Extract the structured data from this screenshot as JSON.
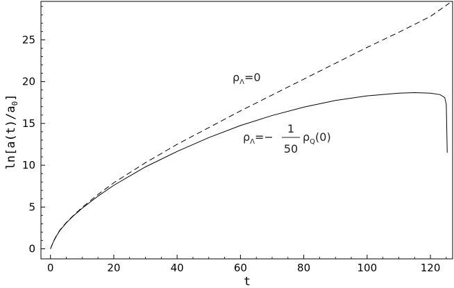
{
  "chart_data": {
    "type": "line",
    "title": "",
    "xlabel": "t",
    "ylabel": "ln[a(t)/a",
    "ylabel_sub": "0",
    "ylabel_end": "]",
    "xlim": [
      -3,
      127
    ],
    "ylim": [
      -1.2,
      29.6
    ],
    "x_ticks": [
      0,
      20,
      40,
      60,
      80,
      100,
      120
    ],
    "y_ticks": [
      0,
      5,
      10,
      15,
      20,
      25
    ],
    "grid": false,
    "legend": "none",
    "series": [
      {
        "style": "dashed",
        "color": "#000000",
        "x": [
          0,
          1,
          2,
          3,
          5,
          7,
          10,
          15,
          20,
          30,
          40,
          50,
          60,
          70,
          80,
          90,
          100,
          110,
          120,
          126
        ],
        "y": [
          0,
          0.95,
          1.65,
          2.25,
          3.15,
          3.9,
          4.95,
          6.5,
          7.9,
          10.3,
          12.5,
          14.5,
          16.5,
          18.4,
          20.3,
          22.2,
          24.1,
          25.9,
          27.8,
          29.4
        ]
      },
      {
        "style": "solid",
        "color": "#000000",
        "x": [
          0,
          1,
          2,
          3,
          5,
          7,
          10,
          15,
          20,
          30,
          40,
          50,
          60,
          70,
          80,
          90,
          100,
          110,
          115,
          120,
          123,
          124.5,
          125,
          125.3
        ],
        "y": [
          0,
          0.9,
          1.6,
          2.2,
          3.1,
          3.85,
          4.85,
          6.3,
          7.6,
          9.8,
          11.65,
          13.3,
          14.75,
          15.95,
          16.95,
          17.75,
          18.3,
          18.62,
          18.68,
          18.62,
          18.45,
          18.1,
          17.3,
          11.5
        ]
      }
    ],
    "annotations": [
      {
        "text_main": "ρ",
        "text_sub": "Λ",
        "text_rest": "=0"
      },
      {
        "text_main": "ρ",
        "text_sub": "Λ",
        "text_rest": "=−",
        "frac_num": "1",
        "frac_den": "50",
        "text_after": "ρ",
        "text_after_sub": "Q",
        "text_end": "(0)"
      }
    ]
  }
}
